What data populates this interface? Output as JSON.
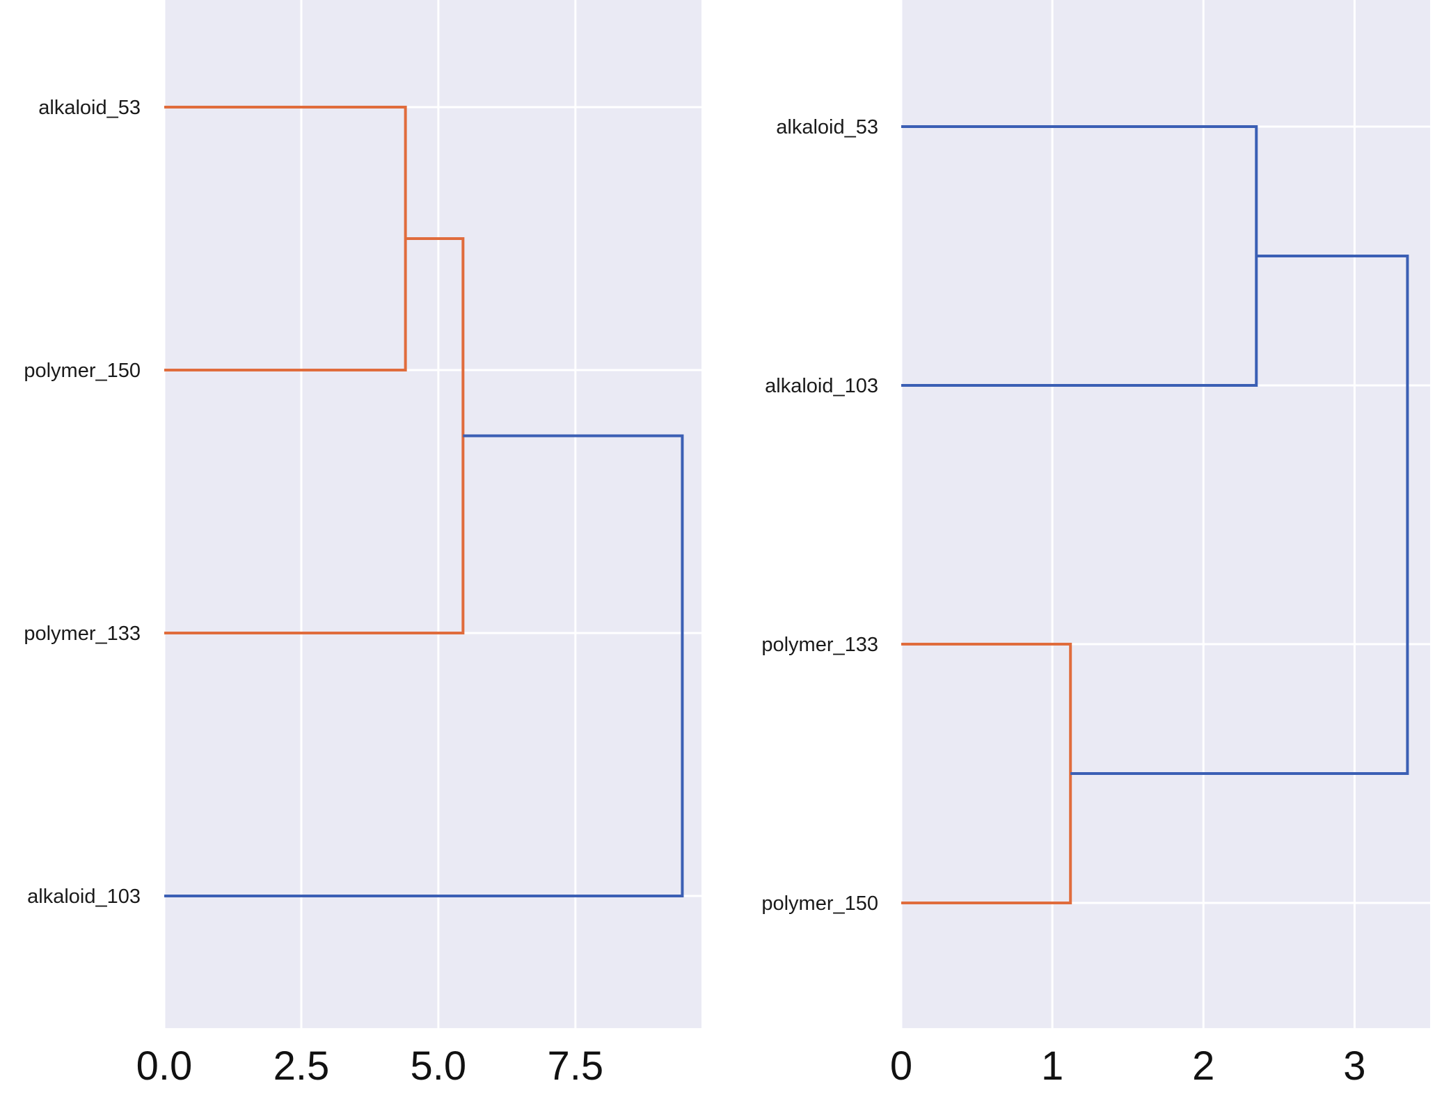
{
  "colors": {
    "background": "#eaeaf4",
    "grid": "#ffffff",
    "cluster": "#e06c3c",
    "above_threshold": "#3b5fb4"
  },
  "chart_data": [
    {
      "type": "dendrogram",
      "orientation": "right",
      "leaves": [
        "alkaloid_53",
        "polymer_150",
        "polymer_133",
        "alkaloid_103"
      ],
      "xticks": [
        "0.0",
        "2.5",
        "5.0",
        "7.5"
      ],
      "xlim": [
        0,
        9.8
      ],
      "grid": true,
      "links": [
        {
          "merge": [
            "alkaloid_53",
            "polymer_150"
          ],
          "height": 4.4,
          "color": "cluster"
        },
        {
          "merge": [
            "[alkaloid_53, polymer_150]",
            "polymer_133"
          ],
          "height": 5.45,
          "color": "cluster"
        },
        {
          "merge": [
            "[alkaloid_53, polymer_150, polymer_133]",
            "alkaloid_103"
          ],
          "height": 9.45,
          "color": "above_threshold"
        }
      ]
    },
    {
      "type": "dendrogram",
      "orientation": "right",
      "leaves": [
        "alkaloid_53",
        "alkaloid_103",
        "polymer_133",
        "polymer_150"
      ],
      "xticks": [
        "0",
        "1",
        "2",
        "3"
      ],
      "xlim": [
        0,
        3.5
      ],
      "grid": true,
      "links": [
        {
          "merge": [
            "alkaloid_53",
            "alkaloid_103"
          ],
          "height": 2.35,
          "color": "above_threshold"
        },
        {
          "merge": [
            "polymer_133",
            "polymer_150"
          ],
          "height": 1.12,
          "color": "cluster"
        },
        {
          "merge": [
            "[alkaloid_53, alkaloid_103]",
            "[polymer_133, polymer_150]"
          ],
          "height": 3.35,
          "color": "above_threshold"
        }
      ]
    }
  ]
}
